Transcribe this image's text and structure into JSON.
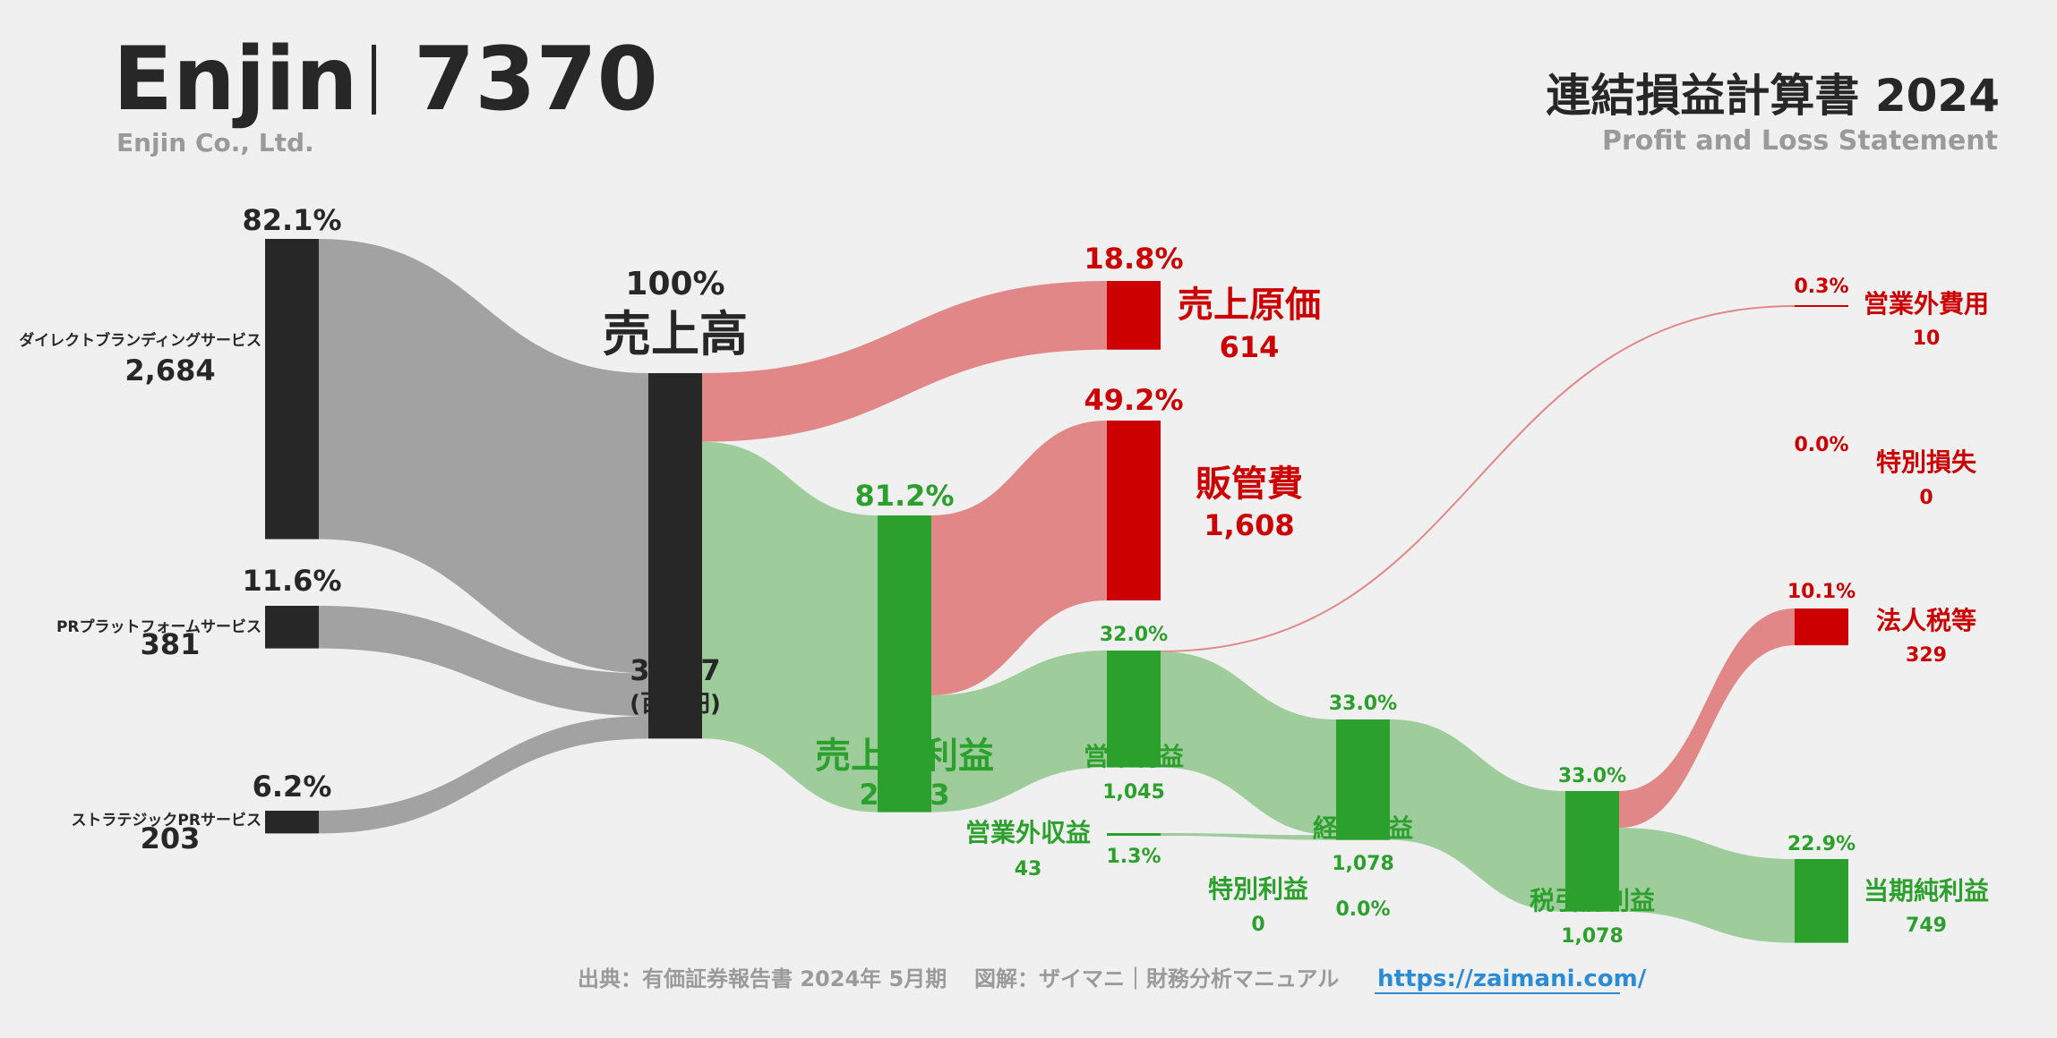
{
  "header": {
    "company": "Enjin",
    "ticker": "7370",
    "company_en": "Enjin Co., Ltd.",
    "statement_title": "連結損益計算書 2024",
    "statement_subtitle": "Profit and Loss Statement"
  },
  "footer": {
    "source": "出典：有価証券報告書 2024年 5月期",
    "credit": "図解：ザイマニ｜財務分析マニュアル",
    "url": "https://zaimani.com/"
  },
  "colors": {
    "segment": "#272727",
    "segment_flow": "#a2a2a2",
    "profit": "#2ca02c",
    "profit_flow": "#9ecd9b",
    "cost": "#cc0000",
    "cost_flow": "#e28787",
    "text_dark": "#272727",
    "text_gray": "#9a9a9a",
    "link": "#2a8bd6"
  },
  "chart_data": {
    "type": "sankey",
    "unit": "(百万円)",
    "segments": [
      {
        "name": "ダイレクトブランディングサービス",
        "value": 2684,
        "pct": "82.1%"
      },
      {
        "name": "PRプラットフォームサービス",
        "value": 381,
        "pct": "11.6%"
      },
      {
        "name": "ストラテジックPRサービス",
        "value": 203,
        "pct": "6.2%"
      }
    ],
    "revenue": {
      "name": "売上高",
      "value": 3267,
      "value_label": "3,267",
      "pct": "100%"
    },
    "nodes": {
      "cogs": {
        "name": "売上原価",
        "value": 614,
        "value_label": "614",
        "pct": "18.8%"
      },
      "gross": {
        "name": "売上総利益",
        "value": 2653,
        "value_label": "2,653",
        "pct": "81.2%"
      },
      "sga": {
        "name": "販管費",
        "value": 1608,
        "value_label": "1,608",
        "pct": "49.2%"
      },
      "operating": {
        "name": "営業利益",
        "value": 1045,
        "value_label": "1,045",
        "pct": "32.0%"
      },
      "non_op_income": {
        "name": "営業外収益",
        "value": 43,
        "value_label": "43",
        "pct": "1.3%"
      },
      "non_op_expense": {
        "name": "営業外費用",
        "value": 10,
        "value_label": "10",
        "pct": "0.3%"
      },
      "ordinary": {
        "name": "経常利益",
        "value": 1078,
        "value_label": "1,078",
        "pct": "33.0%"
      },
      "special_gain": {
        "name": "特別利益",
        "value": 0,
        "value_label": "0",
        "pct": "0.0%"
      },
      "special_loss": {
        "name": "特別損失",
        "value": 0,
        "value_label": "0",
        "pct": "0.0%"
      },
      "pretax": {
        "name": "税引前利益",
        "value": 1078,
        "value_label": "1,078",
        "pct": "33.0%"
      },
      "tax": {
        "name": "法人税等",
        "value": 329,
        "value_label": "329",
        "pct": "10.1%"
      },
      "net": {
        "name": "当期純利益",
        "value": 749,
        "value_label": "749",
        "pct": "22.9%"
      }
    },
    "links": [
      {
        "from": "ダイレクトブランディングサービス",
        "to": "売上高",
        "value": 2684
      },
      {
        "from": "PRプラットフォームサービス",
        "to": "売上高",
        "value": 381
      },
      {
        "from": "ストラテジックPRサービス",
        "to": "売上高",
        "value": 203
      },
      {
        "from": "売上高",
        "to": "売上原価",
        "value": 614
      },
      {
        "from": "売上高",
        "to": "売上総利益",
        "value": 2653
      },
      {
        "from": "売上総利益",
        "to": "販管費",
        "value": 1608
      },
      {
        "from": "売上総利益",
        "to": "営業利益",
        "value": 1045
      },
      {
        "from": "営業利益",
        "to": "営業外費用",
        "value": 10
      },
      {
        "from": "営業利益",
        "to": "経常利益",
        "value": 1035
      },
      {
        "from": "営業外収益",
        "to": "経常利益",
        "value": 43
      },
      {
        "from": "経常利益",
        "to": "税引前利益",
        "value": 1078
      },
      {
        "from": "税引前利益",
        "to": "法人税等",
        "value": 329
      },
      {
        "from": "税引前利益",
        "to": "当期純利益",
        "value": 749
      }
    ]
  }
}
